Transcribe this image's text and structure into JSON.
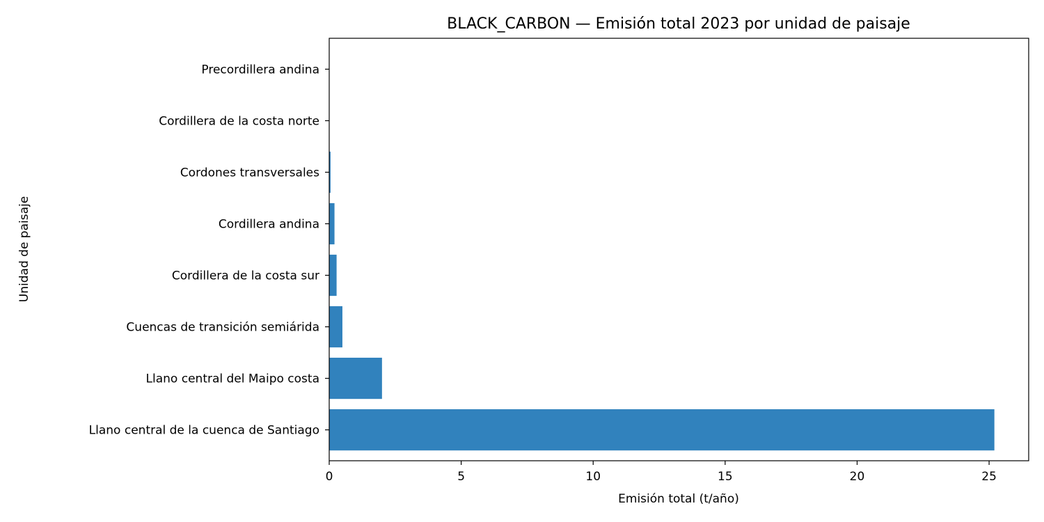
{
  "chart_data": {
    "type": "bar",
    "orientation": "horizontal",
    "title": "BLACK_CARBON — Emisión total 2023 por unidad de paisaje",
    "xlabel": "Emisión total (t/año)",
    "ylabel": "Unidad de paisaje",
    "categories": [
      "Llano central de la cuenca de Santiago",
      "Llano central del Maipo costa",
      "Cuencas de transición semiárida",
      "Cordillera de la costa sur",
      "Cordillera andina",
      "Cordones transversales",
      "Cordillera de la costa norte",
      "Precordillera andina"
    ],
    "values": [
      25.2,
      2.0,
      0.5,
      0.28,
      0.2,
      0.05,
      0.01,
      0.005
    ],
    "xlim": [
      0,
      26.5
    ],
    "xticks": [
      0,
      5,
      10,
      15,
      20,
      25
    ],
    "bar_color": "#3182bd",
    "grid": false
  }
}
